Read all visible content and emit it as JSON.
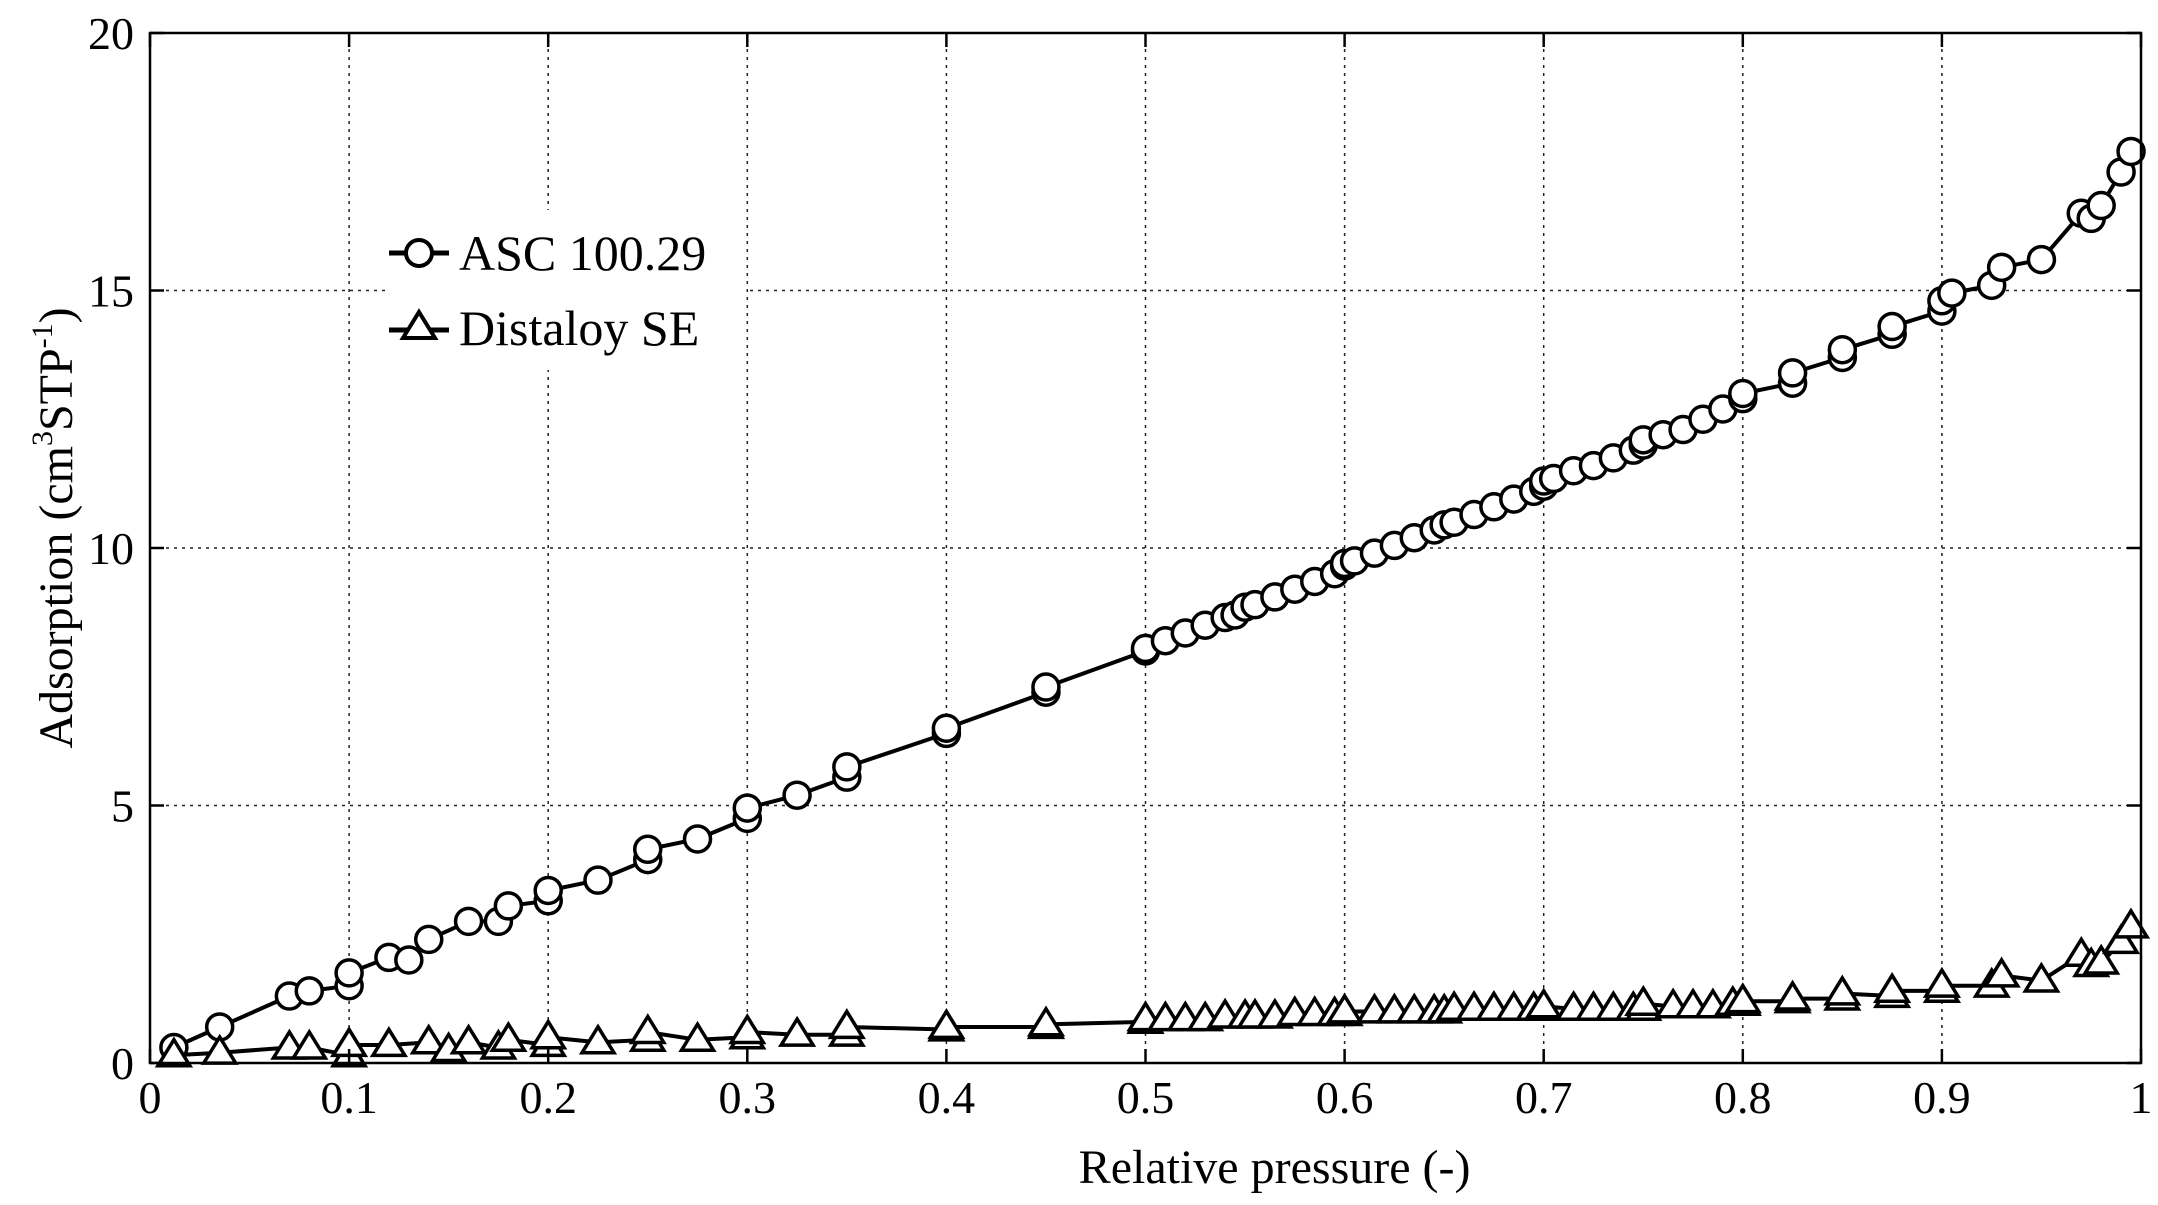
{
  "chart_data": {
    "type": "line",
    "title": "",
    "xlabel": "Relative pressure   (-)",
    "ylabel": "Adsorption  (cm3STP-1)",
    "ylabel_parts": {
      "prefix": "Adsorption  (cm",
      "sup1": "3",
      "middle": "STP",
      "sup2": "-1",
      "suffix": ")"
    },
    "xlim": [
      0,
      1
    ],
    "ylim": [
      0,
      20
    ],
    "xticks": [
      0,
      0.1,
      0.2,
      0.3,
      0.4,
      0.5,
      0.6,
      0.7,
      0.8,
      0.9,
      1
    ],
    "xtick_labels": [
      "0",
      "0.1",
      "0.2",
      "0.3",
      "0.4",
      "0.5",
      "0.6",
      "0.7",
      "0.8",
      "0.9",
      "1"
    ],
    "yticks": [
      0,
      5,
      10,
      15,
      20
    ],
    "ytick_labels": [
      "0",
      "5",
      "10",
      "15",
      "20"
    ],
    "grid": true,
    "legend_position": "upper-left",
    "series": [
      {
        "name": "ASC 100.29",
        "marker": "circle",
        "x": [
          0.012,
          0.035,
          0.07,
          0.08,
          0.1,
          0.1,
          0.12,
          0.13,
          0.14,
          0.16,
          0.175,
          0.18,
          0.2,
          0.2,
          0.225,
          0.25,
          0.25,
          0.275,
          0.3,
          0.3,
          0.325,
          0.35,
          0.35,
          0.4,
          0.4,
          0.45,
          0.45,
          0.5,
          0.5,
          0.51,
          0.52,
          0.53,
          0.54,
          0.545,
          0.55,
          0.555,
          0.565,
          0.575,
          0.585,
          0.595,
          0.6,
          0.6,
          0.605,
          0.615,
          0.625,
          0.635,
          0.645,
          0.65,
          0.655,
          0.665,
          0.675,
          0.685,
          0.695,
          0.7,
          0.7,
          0.705,
          0.715,
          0.725,
          0.735,
          0.745,
          0.75,
          0.75,
          0.76,
          0.77,
          0.78,
          0.79,
          0.8,
          0.8,
          0.825,
          0.825,
          0.85,
          0.85,
          0.875,
          0.875,
          0.9,
          0.9,
          0.905,
          0.925,
          0.93,
          0.95,
          0.97,
          0.975,
          0.98,
          0.99,
          0.995
        ],
        "y": [
          0.3,
          0.7,
          1.3,
          1.4,
          1.5,
          1.75,
          2.05,
          2.0,
          2.4,
          2.75,
          2.75,
          3.05,
          3.15,
          3.35,
          3.55,
          3.95,
          4.15,
          4.35,
          4.75,
          4.95,
          5.2,
          5.55,
          5.75,
          6.4,
          6.5,
          7.2,
          7.3,
          8.0,
          8.05,
          8.2,
          8.35,
          8.5,
          8.65,
          8.7,
          8.85,
          8.9,
          9.05,
          9.2,
          9.35,
          9.5,
          9.65,
          9.7,
          9.75,
          9.9,
          10.05,
          10.2,
          10.35,
          10.45,
          10.5,
          10.65,
          10.8,
          10.95,
          11.1,
          11.2,
          11.3,
          11.35,
          11.5,
          11.6,
          11.75,
          11.9,
          12.0,
          12.1,
          12.2,
          12.3,
          12.5,
          12.7,
          12.9,
          13.0,
          13.2,
          13.4,
          13.7,
          13.85,
          14.15,
          14.3,
          14.6,
          14.8,
          14.95,
          15.1,
          15.45,
          15.6,
          16.5,
          16.4,
          16.65,
          17.3,
          17.7
        ]
      },
      {
        "name": "Distaloy SE",
        "marker": "triangle",
        "x": [
          0.012,
          0.035,
          0.07,
          0.08,
          0.1,
          0.1,
          0.12,
          0.14,
          0.15,
          0.16,
          0.175,
          0.18,
          0.2,
          0.2,
          0.225,
          0.25,
          0.25,
          0.275,
          0.3,
          0.3,
          0.325,
          0.35,
          0.35,
          0.4,
          0.4,
          0.45,
          0.45,
          0.5,
          0.5,
          0.51,
          0.52,
          0.53,
          0.54,
          0.55,
          0.555,
          0.565,
          0.575,
          0.585,
          0.595,
          0.6,
          0.6,
          0.615,
          0.625,
          0.635,
          0.645,
          0.65,
          0.655,
          0.665,
          0.675,
          0.685,
          0.695,
          0.7,
          0.7,
          0.715,
          0.725,
          0.735,
          0.745,
          0.75,
          0.75,
          0.765,
          0.775,
          0.785,
          0.795,
          0.8,
          0.8,
          0.825,
          0.825,
          0.85,
          0.85,
          0.875,
          0.875,
          0.9,
          0.9,
          0.925,
          0.93,
          0.95,
          0.97,
          0.975,
          0.98,
          0.99,
          0.995
        ],
        "y": [
          0.15,
          0.2,
          0.3,
          0.3,
          0.15,
          0.35,
          0.35,
          0.4,
          0.25,
          0.4,
          0.3,
          0.45,
          0.35,
          0.5,
          0.4,
          0.45,
          0.6,
          0.45,
          0.5,
          0.6,
          0.55,
          0.55,
          0.7,
          0.65,
          0.7,
          0.7,
          0.75,
          0.8,
          0.85,
          0.85,
          0.85,
          0.85,
          0.9,
          0.9,
          0.9,
          0.9,
          0.95,
          0.95,
          0.95,
          0.95,
          1.0,
          1.0,
          1.0,
          1.0,
          1.0,
          1.0,
          1.05,
          1.05,
          1.05,
          1.05,
          1.05,
          1.05,
          1.1,
          1.05,
          1.05,
          1.05,
          1.05,
          1.05,
          1.15,
          1.1,
          1.1,
          1.1,
          1.15,
          1.15,
          1.2,
          1.2,
          1.25,
          1.25,
          1.35,
          1.3,
          1.4,
          1.4,
          1.5,
          1.5,
          1.7,
          1.6,
          2.1,
          1.9,
          1.95,
          2.35,
          2.65
        ]
      }
    ]
  }
}
